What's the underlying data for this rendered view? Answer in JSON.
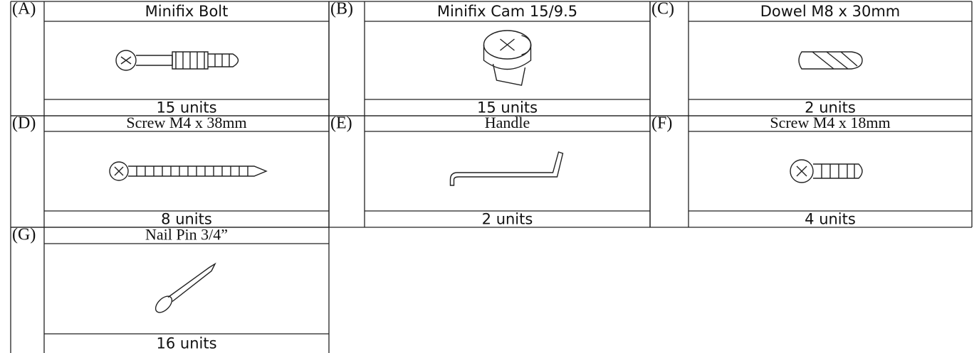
{
  "parts": [
    {
      "letter": "(A)",
      "name": "Minifix Bolt",
      "count": "15 units"
    },
    {
      "letter": "(B)",
      "name": "Minifix Cam 15/9.5",
      "count": "15 units"
    },
    {
      "letter": "(C)",
      "name": "Dowel M8 x 30mm",
      "count": "2 units"
    },
    {
      "letter": "(D)",
      "name": "Screw M4 x 38mm",
      "count": "8 units"
    },
    {
      "letter": "(E)",
      "name": "Handle",
      "count": "2 units"
    },
    {
      "letter": "(F)",
      "name": "Screw M4 x 18mm",
      "count": "4 units"
    },
    {
      "letter": "(G)",
      "name": "Nail Pin 3/4”",
      "count": "16 units"
    }
  ]
}
